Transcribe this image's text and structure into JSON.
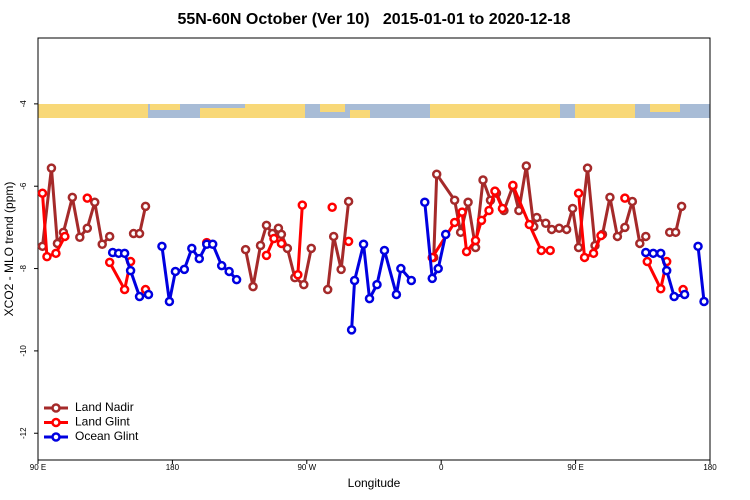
{
  "chart_data": {
    "type": "line",
    "title": "55N-60N October (Ver 10)   2015-01-01 to 2020-12-18",
    "x_label": "Longitude",
    "y_label": "XCO2 - MLO trend (ppm)",
    "xlim": [
      90,
      540
    ],
    "ylim": [
      -12.65,
      -2.4
    ],
    "xticks": [
      {
        "value": 90,
        "label": "90 E"
      },
      180,
      {
        "value": 270,
        "label": "90 W"
      },
      {
        "value": 360,
        "label": "0"
      },
      {
        "value": 450,
        "label": "90 E"
      },
      {
        "value": 540,
        "label": "180"
      }
    ],
    "yticks": [
      -4,
      -6,
      -8,
      -10,
      -12
    ],
    "legend": "lower left",
    "series": [
      {
        "name": "Land Nadir",
        "color": "#a52a2a",
        "x": [
          93,
          99,
          103,
          107,
          113,
          118,
          123,
          128,
          133,
          138,
          null,
          154,
          158,
          162,
          null,
          229,
          234,
          239,
          243,
          247,
          251,
          253,
          257,
          262,
          268,
          273,
          null,
          284,
          288,
          293,
          298,
          null,
          355,
          357,
          369,
          373,
          378,
          383,
          388,
          393,
          397,
          402,
          408,
          412,
          417,
          422,
          424,
          430,
          434,
          439,
          444,
          448,
          452,
          458,
          463,
          468,
          473,
          478,
          483,
          488,
          493,
          497,
          null,
          513,
          517,
          521
        ],
        "values": [
          -7.46,
          -5.56,
          -7.39,
          -7.12,
          -6.27,
          -7.24,
          -7.02,
          -6.39,
          -7.41,
          -7.22,
          null,
          -7.15,
          -7.15,
          -6.49,
          null,
          -7.54,
          -8.44,
          -7.44,
          -6.95,
          -7.15,
          -7.02,
          -7.17,
          -7.51,
          -8.22,
          -8.39,
          -7.51,
          null,
          -8.51,
          -7.22,
          -8.02,
          -6.37,
          null,
          -7.73,
          -5.71,
          -6.34,
          -7.12,
          -6.39,
          -7.49,
          -5.85,
          -6.34,
          -6.17,
          -6.59,
          -6.0,
          -6.59,
          -5.51,
          -6.98,
          -6.76,
          -6.9,
          -7.05,
          -7.02,
          -7.05,
          -6.54,
          -7.49,
          -5.56,
          -7.44,
          -7.17,
          -6.27,
          -7.22,
          -7.0,
          -6.37,
          -7.39,
          -7.22,
          null,
          -7.12,
          -7.12,
          -6.49
        ]
      },
      {
        "name": "Land Glint",
        "color": "#ff0000",
        "x": [
          93,
          96,
          102,
          108,
          null,
          123,
          null,
          138,
          148,
          152,
          null,
          162,
          null,
          203,
          null,
          243,
          248,
          253,
          null,
          264,
          267,
          null,
          287,
          null,
          298,
          null,
          354,
          369,
          374,
          377,
          383,
          387,
          392,
          396,
          401,
          null,
          408,
          419,
          427,
          433,
          null,
          452,
          456,
          462,
          467,
          null,
          483,
          null,
          498,
          507,
          511,
          null,
          522
        ],
        "values": [
          -6.17,
          -7.71,
          -7.63,
          -7.22,
          null,
          -6.29,
          null,
          -7.85,
          -8.51,
          -7.83,
          null,
          -8.51,
          null,
          -7.37,
          null,
          -7.68,
          -7.27,
          -7.39,
          null,
          -8.15,
          -6.46,
          null,
          -6.51,
          null,
          -7.34,
          null,
          -7.73,
          -6.88,
          -6.63,
          -7.59,
          -7.32,
          -6.83,
          -6.59,
          -6.12,
          -6.54,
          null,
          -5.98,
          -6.93,
          -7.56,
          -7.56,
          null,
          -6.17,
          -7.73,
          -7.63,
          -7.2,
          null,
          -6.29,
          null,
          -7.83,
          -8.49,
          -7.83,
          null,
          -8.51
        ]
      },
      {
        "name": "Ocean Glint",
        "color": "#0000e0",
        "x": [
          140,
          144,
          148,
          152,
          158,
          164,
          null,
          173,
          178,
          182,
          188,
          193,
          198,
          203,
          207,
          213,
          218,
          223,
          null,
          300,
          302,
          308,
          312,
          317,
          322,
          330,
          333,
          340,
          null,
          349,
          354,
          358,
          363,
          null,
          497,
          502,
          507,
          511,
          516,
          523,
          null,
          532,
          536
        ],
        "values": [
          -7.61,
          -7.63,
          -7.63,
          -8.05,
          -8.68,
          -8.63,
          null,
          -7.46,
          -8.8,
          -8.07,
          -8.02,
          -7.51,
          -7.76,
          -7.41,
          -7.41,
          -7.93,
          -8.07,
          -8.27,
          null,
          -9.49,
          -8.29,
          -7.41,
          -8.73,
          -8.39,
          -7.56,
          -8.63,
          -8.0,
          -8.29,
          null,
          -6.39,
          -8.24,
          -8.0,
          -7.17,
          null,
          -7.61,
          -7.63,
          -7.63,
          -8.05,
          -8.68,
          -8.63,
          null,
          -7.46,
          -8.8
        ]
      }
    ]
  }
}
